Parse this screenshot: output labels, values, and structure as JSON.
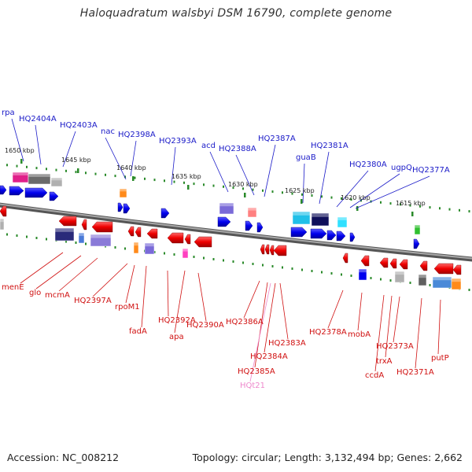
{
  "title": "Haloquadratum walsbyi DSM 16790, complete genome",
  "footer": {
    "accession": "Accession: NC_008212",
    "summary": "Topology: circular; Length: 3,132,494 bp; Genes: 2,662"
  },
  "colors": {
    "forward_labels": "#1a1ac8",
    "reverse_labels": "#d01010",
    "rna_label": "#ee88cc",
    "backbone": "#808080",
    "tick": "#2a8a2a"
  },
  "kbp_marks": [
    "1650 kbp",
    "1645 kbp",
    "1640 kbp",
    "1635 kbp",
    "1630 kbp",
    "1625 kbp",
    "1620 kbp",
    "1615 kbp"
  ],
  "forward_genes": [
    "rpa",
    "HQ2404A",
    "HQ2403A",
    "nac",
    "HQ2398A",
    "HQ2393A",
    "acd",
    "HQ2388A",
    "HQ2387A",
    "guaB",
    "HQ2381A",
    "HQ2380A",
    "ugpQ",
    "HQ2377A"
  ],
  "reverse_genes": [
    "menE",
    "glo",
    "mcmA",
    "HQ2397A",
    "rpoM1",
    "fadA",
    "HQ2392A",
    "apa",
    "HQ2390A",
    "HQ2386A",
    "HQ2385A",
    "HQt21",
    "HQ2384A",
    "HQ2383A",
    "HQ2378A",
    "mobA",
    "ccdA",
    "trxA",
    "HQ2373A",
    "HQ2371A",
    "putP"
  ]
}
